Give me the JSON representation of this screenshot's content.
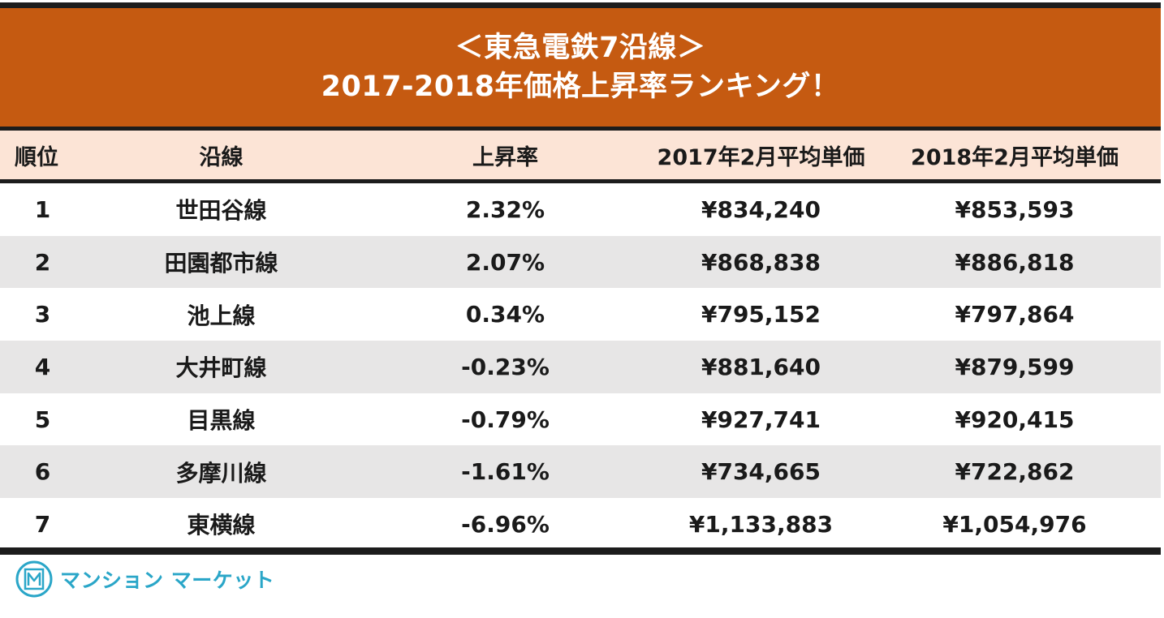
{
  "title": {
    "line1": "＜東急電鉄7沿線＞",
    "line2": "2017-2018年価格上昇率ランキング！"
  },
  "table": {
    "headers": {
      "rank": "順位",
      "line": "沿線",
      "rate": "上昇率",
      "price_2017": "2017年2月平均単価",
      "price_2018": "2018年2月平均単価"
    },
    "rows": [
      {
        "rank": "1",
        "line": "世田谷線",
        "rate": "2.32%",
        "price_2017": "¥834,240",
        "price_2018": "¥853,593"
      },
      {
        "rank": "2",
        "line": "田園都市線",
        "rate": "2.07%",
        "price_2017": "¥868,838",
        "price_2018": "¥886,818"
      },
      {
        "rank": "3",
        "line": "池上線",
        "rate": "0.34%",
        "price_2017": "¥795,152",
        "price_2018": "¥797,864"
      },
      {
        "rank": "4",
        "line": "大井町線",
        "rate": "-0.23%",
        "price_2017": "¥881,640",
        "price_2018": "¥879,599"
      },
      {
        "rank": "5",
        "line": "目黒線",
        "rate": "-0.79%",
        "price_2017": "¥927,741",
        "price_2018": "¥920,415"
      },
      {
        "rank": "6",
        "line": "多摩川線",
        "rate": "-1.61%",
        "price_2017": "¥734,665",
        "price_2018": "¥722,862"
      },
      {
        "rank": "7",
        "line": "東横線",
        "rate": "-6.96%",
        "price_2017": "¥1,133,883",
        "price_2018": "¥1,054,976"
      }
    ]
  },
  "logo": {
    "text": "マンション マーケット",
    "icon": "mansion-market-logo-icon",
    "color": "#2aa6c8"
  },
  "colors": {
    "banner": "#c55a11",
    "header_row": "#fce4d6",
    "alt_row": "#e7e6e6",
    "rules": "#1c1c1c"
  }
}
